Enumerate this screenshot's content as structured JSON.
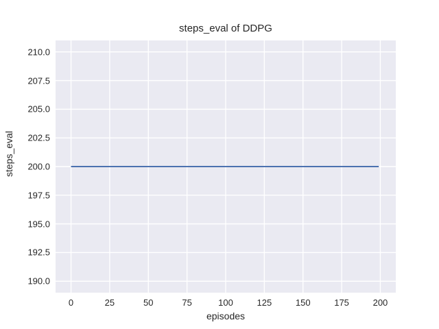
{
  "chart_data": {
    "type": "line",
    "title": "steps_eval of DDPG",
    "xlabel": "episodes",
    "ylabel": "steps_eval",
    "xlim": [
      -10,
      210
    ],
    "ylim": [
      189,
      211
    ],
    "xtick_values": [
      0,
      25,
      50,
      75,
      100,
      125,
      150,
      175,
      200
    ],
    "xtick_labels": [
      "0",
      "25",
      "50",
      "75",
      "100",
      "125",
      "150",
      "175",
      "200"
    ],
    "ytick_values": [
      190.0,
      192.5,
      195.0,
      197.5,
      200.0,
      202.5,
      205.0,
      207.5,
      210.0
    ],
    "ytick_labels": [
      "190.0",
      "192.5",
      "195.0",
      "197.5",
      "200.0",
      "202.5",
      "205.0",
      "207.5",
      "210.0"
    ],
    "grid": true,
    "legend_position": "none",
    "series": [
      {
        "name": "steps_eval",
        "color": "#4C72B0",
        "x": [
          0,
          199
        ],
        "y": [
          200,
          200
        ]
      }
    ],
    "plot_background": "#EAEAF2",
    "grid_color": "#FFFFFF",
    "figure_background": "#FFFFFF",
    "text_color": "#262626"
  }
}
